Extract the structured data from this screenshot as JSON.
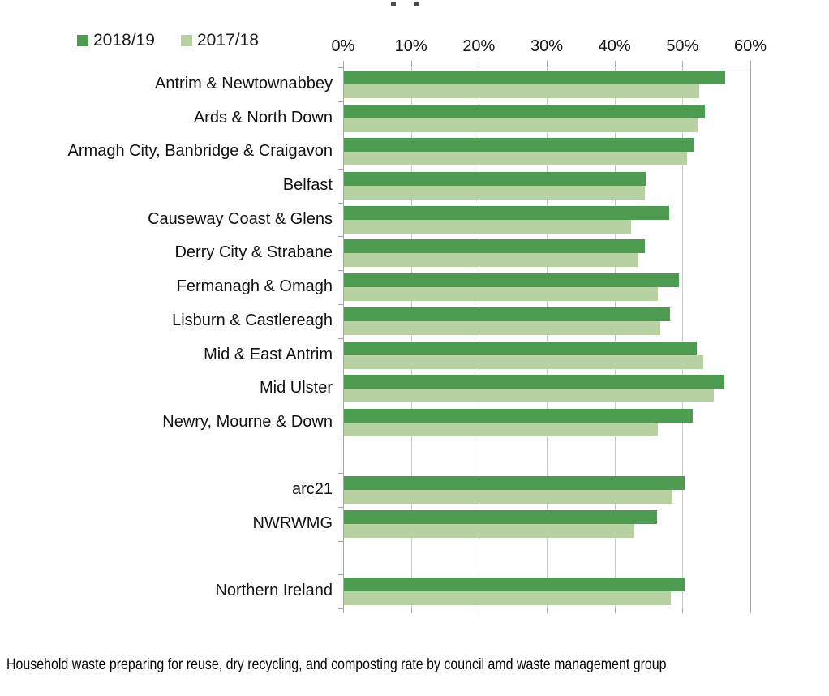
{
  "legend": {
    "items": [
      {
        "label": "2018/19",
        "color": "#4d9b50"
      },
      {
        "label": "2017/18",
        "color": "#b7d1a3"
      }
    ]
  },
  "chart_data": {
    "type": "bar",
    "orientation": "horizontal",
    "caption": "Household waste preparing for reuse, dry recycling, and composting rate by council amd waste management group",
    "x_axis": {
      "position": "top",
      "min": 0,
      "max": 60,
      "tick_values": [
        0,
        10,
        20,
        30,
        40,
        50,
        60
      ],
      "tick_labels": [
        "0%",
        "10%",
        "20%",
        "30%",
        "40%",
        "50%",
        "60%"
      ],
      "grid": true
    },
    "categories": [
      "Antrim & Newtownabbey",
      "Ards & North Down",
      "Armagh City, Banbridge & Craigavon",
      "Belfast",
      "Causeway Coast & Glens",
      "Derry City & Strabane",
      "Fermanagh & Omagh",
      "Lisburn & Castlereagh",
      "Mid & East Antrim",
      "Mid Ulster",
      "Newry, Mourne & Down",
      "",
      "arc21",
      "NWRWMG",
      "",
      "Northern Ireland"
    ],
    "series": [
      {
        "name": "2018/19",
        "color": "#4d9b50",
        "values": [
          56.2,
          53.2,
          51.6,
          44.5,
          47.9,
          44.4,
          49.4,
          48.1,
          52.0,
          56.0,
          51.4,
          null,
          50.2,
          46.1,
          null,
          50.2
        ]
      },
      {
        "name": "2017/18",
        "color": "#b7d1a3",
        "values": [
          52.4,
          52.1,
          50.5,
          44.4,
          42.3,
          43.4,
          46.3,
          46.6,
          52.9,
          54.5,
          46.2,
          null,
          48.4,
          42.8,
          null,
          48.2
        ]
      }
    ],
    "colors": {
      "grid": "#c9c9c9",
      "axis": "#a6a6a6",
      "text": "#111111"
    }
  }
}
